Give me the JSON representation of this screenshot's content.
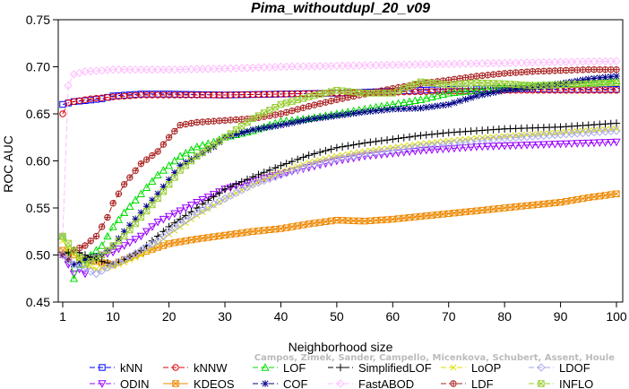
{
  "chart_data": {
    "type": "line",
    "title": "Pima_withoutdupl_20_v09",
    "xlabel": "Neighborhood size",
    "ylabel": "ROC AUC",
    "xlim": [
      1,
      100
    ],
    "ylim": [
      0.45,
      0.75
    ],
    "xticks": [
      1,
      10,
      20,
      30,
      40,
      50,
      60,
      70,
      80,
      90,
      100
    ],
    "yticks": [
      0.45,
      0.5,
      0.55,
      0.6,
      0.65,
      0.7,
      0.75
    ],
    "grid": false,
    "legend_position": "bottom",
    "series": [
      {
        "name": "kNN",
        "color": "#0000ff",
        "marker": "square",
        "dash": "6,3",
        "points": [
          [
            1,
            0.66
          ],
          [
            3,
            0.663
          ],
          [
            5,
            0.664
          ],
          [
            8,
            0.666
          ],
          [
            10,
            0.669
          ],
          [
            15,
            0.671
          ],
          [
            20,
            0.671
          ],
          [
            30,
            0.67
          ],
          [
            40,
            0.671
          ],
          [
            50,
            0.672
          ],
          [
            60,
            0.674
          ],
          [
            70,
            0.676
          ],
          [
            80,
            0.677
          ],
          [
            90,
            0.676
          ],
          [
            100,
            0.676
          ]
        ]
      },
      {
        "name": "ODIN",
        "color": "#9900ff",
        "marker": "tri-down",
        "dash": "6,3",
        "points": [
          [
            1,
            0.5
          ],
          [
            2,
            0.49
          ],
          [
            3,
            0.48
          ],
          [
            4,
            0.485
          ],
          [
            5,
            0.48
          ],
          [
            6,
            0.495
          ],
          [
            8,
            0.5
          ],
          [
            10,
            0.503
          ],
          [
            12,
            0.51
          ],
          [
            15,
            0.52
          ],
          [
            18,
            0.535
          ],
          [
            20,
            0.541
          ],
          [
            25,
            0.556
          ],
          [
            30,
            0.57
          ],
          [
            35,
            0.578
          ],
          [
            40,
            0.586
          ],
          [
            45,
            0.593
          ],
          [
            50,
            0.6
          ],
          [
            55,
            0.605
          ],
          [
            60,
            0.608
          ],
          [
            65,
            0.611
          ],
          [
            70,
            0.613
          ],
          [
            75,
            0.615
          ],
          [
            80,
            0.616
          ],
          [
            85,
            0.617
          ],
          [
            90,
            0.618
          ],
          [
            95,
            0.619
          ],
          [
            100,
            0.62
          ]
        ]
      },
      {
        "name": "kNNW",
        "color": "#dd0000",
        "marker": "circle",
        "dash": "6,3",
        "points": [
          [
            1,
            0.65
          ],
          [
            2,
            0.662
          ],
          [
            4,
            0.664
          ],
          [
            6,
            0.666
          ],
          [
            10,
            0.668
          ],
          [
            15,
            0.67
          ],
          [
            20,
            0.67
          ],
          [
            30,
            0.67
          ],
          [
            40,
            0.671
          ],
          [
            50,
            0.672
          ],
          [
            60,
            0.673
          ],
          [
            70,
            0.674
          ],
          [
            80,
            0.675
          ],
          [
            90,
            0.675
          ],
          [
            100,
            0.675
          ]
        ]
      },
      {
        "name": "KDEOS",
        "color": "#ee8800",
        "marker": "x-square",
        "dash": "none",
        "points": [
          [
            1,
            0.505
          ],
          [
            3,
            0.5
          ],
          [
            5,
            0.495
          ],
          [
            8,
            0.492
          ],
          [
            10,
            0.49
          ],
          [
            12,
            0.495
          ],
          [
            15,
            0.502
          ],
          [
            18,
            0.508
          ],
          [
            20,
            0.512
          ],
          [
            25,
            0.517
          ],
          [
            30,
            0.521
          ],
          [
            35,
            0.525
          ],
          [
            40,
            0.528
          ],
          [
            45,
            0.533
          ],
          [
            50,
            0.537
          ],
          [
            55,
            0.536
          ],
          [
            60,
            0.538
          ],
          [
            65,
            0.541
          ],
          [
            70,
            0.544
          ],
          [
            75,
            0.547
          ],
          [
            80,
            0.55
          ],
          [
            85,
            0.553
          ],
          [
            90,
            0.556
          ],
          [
            95,
            0.561
          ],
          [
            100,
            0.565
          ]
        ]
      },
      {
        "name": "LOF",
        "color": "#00dd00",
        "marker": "tri-up",
        "dash": "6,3",
        "points": [
          [
            1,
            0.52
          ],
          [
            2,
            0.505
          ],
          [
            3,
            0.475
          ],
          [
            4,
            0.49
          ],
          [
            5,
            0.495
          ],
          [
            6,
            0.5
          ],
          [
            8,
            0.51
          ],
          [
            10,
            0.53
          ],
          [
            12,
            0.545
          ],
          [
            15,
            0.565
          ],
          [
            18,
            0.585
          ],
          [
            20,
            0.595
          ],
          [
            22,
            0.605
          ],
          [
            25,
            0.615
          ],
          [
            28,
            0.62
          ],
          [
            30,
            0.625
          ],
          [
            35,
            0.632
          ],
          [
            40,
            0.642
          ],
          [
            45,
            0.645
          ],
          [
            50,
            0.65
          ],
          [
            55,
            0.655
          ],
          [
            60,
            0.66
          ],
          [
            65,
            0.665
          ],
          [
            70,
            0.672
          ],
          [
            75,
            0.675
          ],
          [
            80,
            0.678
          ],
          [
            85,
            0.68
          ],
          [
            90,
            0.681
          ],
          [
            95,
            0.683
          ],
          [
            100,
            0.685
          ]
        ]
      },
      {
        "name": "COF",
        "color": "#000088",
        "marker": "asterisk",
        "dash": "6,3",
        "points": [
          [
            1,
            0.5
          ],
          [
            2,
            0.495
          ],
          [
            3,
            0.49
          ],
          [
            5,
            0.495
          ],
          [
            8,
            0.5
          ],
          [
            10,
            0.51
          ],
          [
            12,
            0.525
          ],
          [
            15,
            0.545
          ],
          [
            18,
            0.565
          ],
          [
            20,
            0.58
          ],
          [
            22,
            0.595
          ],
          [
            25,
            0.605
          ],
          [
            28,
            0.615
          ],
          [
            30,
            0.625
          ],
          [
            35,
            0.633
          ],
          [
            40,
            0.638
          ],
          [
            45,
            0.644
          ],
          [
            50,
            0.648
          ],
          [
            55,
            0.652
          ],
          [
            60,
            0.655
          ],
          [
            65,
            0.656
          ],
          [
            70,
            0.66
          ],
          [
            75,
            0.669
          ],
          [
            80,
            0.675
          ],
          [
            85,
            0.678
          ],
          [
            90,
            0.682
          ],
          [
            95,
            0.687
          ],
          [
            100,
            0.69
          ]
        ]
      },
      {
        "name": "SimplifiedLOF",
        "color": "#000000",
        "marker": "plus",
        "dash": "6,3",
        "points": [
          [
            1,
            0.5
          ],
          [
            3,
            0.505
          ],
          [
            5,
            0.5
          ],
          [
            7,
            0.495
          ],
          [
            10,
            0.49
          ],
          [
            12,
            0.495
          ],
          [
            15,
            0.505
          ],
          [
            18,
            0.52
          ],
          [
            20,
            0.53
          ],
          [
            25,
            0.55
          ],
          [
            30,
            0.57
          ],
          [
            35,
            0.583
          ],
          [
            40,
            0.595
          ],
          [
            45,
            0.606
          ],
          [
            50,
            0.614
          ],
          [
            55,
            0.619
          ],
          [
            60,
            0.623
          ],
          [
            65,
            0.627
          ],
          [
            70,
            0.63
          ],
          [
            75,
            0.632
          ],
          [
            80,
            0.634
          ],
          [
            85,
            0.635
          ],
          [
            90,
            0.636
          ],
          [
            95,
            0.638
          ],
          [
            100,
            0.64
          ]
        ]
      },
      {
        "name": "FastABOD",
        "color": "#ffbbff",
        "marker": "diamond",
        "dash": "6,3",
        "points": [
          [
            1,
            0.52
          ],
          [
            2,
            0.68
          ],
          [
            3,
            0.692
          ],
          [
            5,
            0.695
          ],
          [
            8,
            0.696
          ],
          [
            10,
            0.697
          ],
          [
            20,
            0.697
          ],
          [
            30,
            0.698
          ],
          [
            40,
            0.7
          ],
          [
            50,
            0.701
          ],
          [
            60,
            0.702
          ],
          [
            70,
            0.703
          ],
          [
            80,
            0.704
          ],
          [
            90,
            0.705
          ],
          [
            100,
            0.706
          ]
        ]
      },
      {
        "name": "LoOP",
        "color": "#dddd00",
        "marker": "x",
        "dash": "6,3",
        "points": [
          [
            1,
            0.515
          ],
          [
            3,
            0.5
          ],
          [
            5,
            0.49
          ],
          [
            7,
            0.485
          ],
          [
            10,
            0.488
          ],
          [
            12,
            0.492
          ],
          [
            15,
            0.5
          ],
          [
            18,
            0.512
          ],
          [
            20,
            0.522
          ],
          [
            25,
            0.542
          ],
          [
            30,
            0.56
          ],
          [
            35,
            0.575
          ],
          [
            40,
            0.588
          ],
          [
            45,
            0.598
          ],
          [
            50,
            0.605
          ],
          [
            55,
            0.61
          ],
          [
            60,
            0.614
          ],
          [
            65,
            0.618
          ],
          [
            70,
            0.621
          ],
          [
            75,
            0.624
          ],
          [
            80,
            0.626
          ],
          [
            85,
            0.628
          ],
          [
            90,
            0.63
          ],
          [
            95,
            0.632
          ],
          [
            100,
            0.634
          ]
        ]
      },
      {
        "name": "LDF",
        "color": "#aa2222",
        "marker": "circle-plus",
        "dash": "6,3",
        "points": [
          [
            1,
            0.5
          ],
          [
            2,
            0.495
          ],
          [
            3,
            0.505
          ],
          [
            5,
            0.51
          ],
          [
            7,
            0.52
          ],
          [
            9,
            0.54
          ],
          [
            10,
            0.555
          ],
          [
            12,
            0.575
          ],
          [
            15,
            0.597
          ],
          [
            18,
            0.61
          ],
          [
            20,
            0.625
          ],
          [
            22,
            0.638
          ],
          [
            25,
            0.641
          ],
          [
            30,
            0.643
          ],
          [
            35,
            0.645
          ],
          [
            40,
            0.65
          ],
          [
            45,
            0.658
          ],
          [
            50,
            0.665
          ],
          [
            55,
            0.671
          ],
          [
            60,
            0.677
          ],
          [
            65,
            0.682
          ],
          [
            70,
            0.686
          ],
          [
            75,
            0.69
          ],
          [
            80,
            0.693
          ],
          [
            85,
            0.695
          ],
          [
            90,
            0.696
          ],
          [
            95,
            0.697
          ],
          [
            100,
            0.697
          ]
        ]
      },
      {
        "name": "LDOF",
        "color": "#aaaaee",
        "marker": "diamond",
        "dash": "6,3",
        "points": [
          [
            1,
            0.5
          ],
          [
            3,
            0.49
          ],
          [
            5,
            0.485
          ],
          [
            7,
            0.48
          ],
          [
            10,
            0.49
          ],
          [
            12,
            0.495
          ],
          [
            15,
            0.505
          ],
          [
            18,
            0.515
          ],
          [
            20,
            0.525
          ],
          [
            25,
            0.545
          ],
          [
            30,
            0.56
          ],
          [
            35,
            0.575
          ],
          [
            40,
            0.585
          ],
          [
            45,
            0.595
          ],
          [
            50,
            0.602
          ],
          [
            55,
            0.607
          ],
          [
            60,
            0.611
          ],
          [
            65,
            0.615
          ],
          [
            70,
            0.618
          ],
          [
            75,
            0.621
          ],
          [
            80,
            0.624
          ],
          [
            85,
            0.626
          ],
          [
            90,
            0.628
          ],
          [
            95,
            0.63
          ],
          [
            100,
            0.632
          ]
        ]
      },
      {
        "name": "INFLO",
        "color": "#99cc33",
        "marker": "x-square",
        "dash": "6,3",
        "points": [
          [
            1,
            0.52
          ],
          [
            3,
            0.505
          ],
          [
            5,
            0.49
          ],
          [
            8,
            0.5
          ],
          [
            10,
            0.51
          ],
          [
            12,
            0.52
          ],
          [
            15,
            0.54
          ],
          [
            18,
            0.56
          ],
          [
            20,
            0.575
          ],
          [
            22,
            0.59
          ],
          [
            25,
            0.605
          ],
          [
            28,
            0.617
          ],
          [
            30,
            0.625
          ],
          [
            35,
            0.645
          ],
          [
            40,
            0.66
          ],
          [
            45,
            0.668
          ],
          [
            50,
            0.675
          ],
          [
            55,
            0.672
          ],
          [
            60,
            0.672
          ],
          [
            65,
            0.684
          ],
          [
            70,
            0.681
          ],
          [
            75,
            0.683
          ],
          [
            80,
            0.682
          ],
          [
            85,
            0.68
          ],
          [
            90,
            0.681
          ],
          [
            95,
            0.682
          ],
          [
            100,
            0.683
          ]
        ]
      }
    ]
  },
  "watermark": "Campos, Zimek, Sander, Campello, Micenkova, Schubert, Assent, Houle"
}
